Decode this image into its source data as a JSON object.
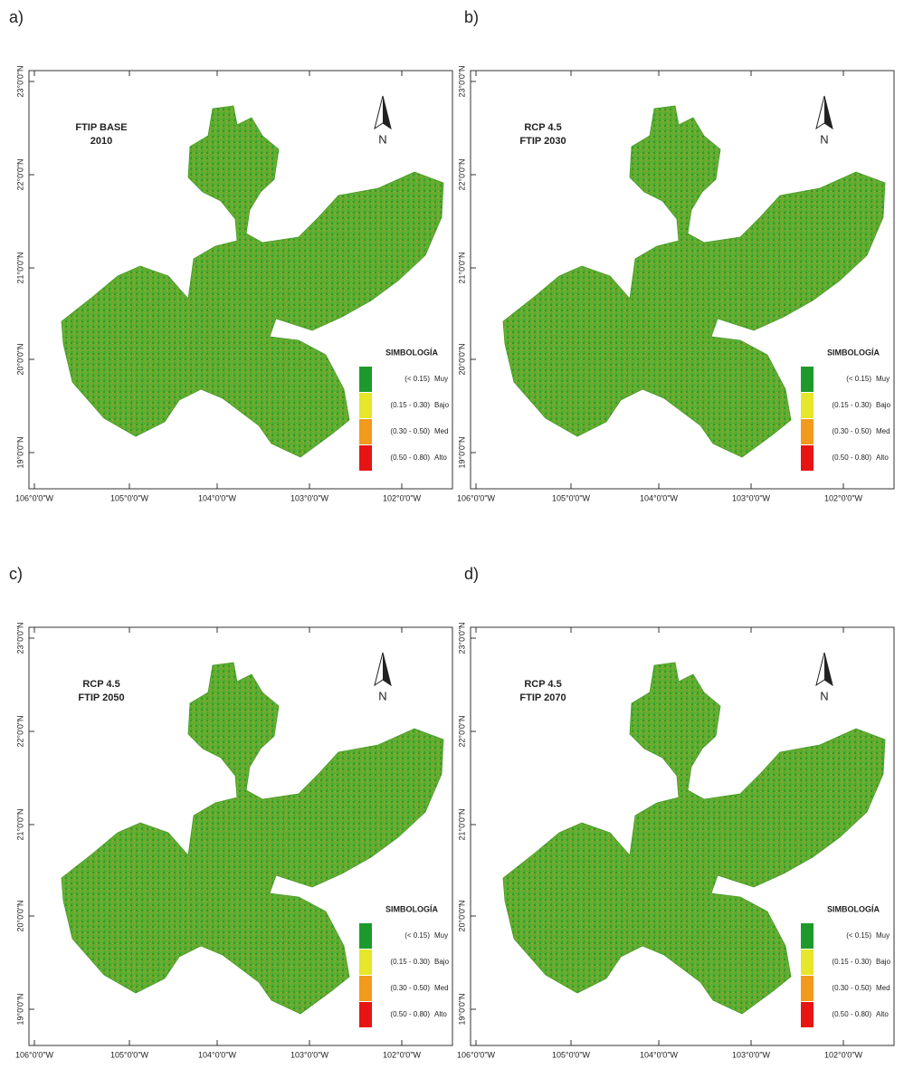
{
  "panels": [
    {
      "label": "a)",
      "title": [
        "FTIP BASE",
        "2010"
      ]
    },
    {
      "label": "b)",
      "title": [
        "RCP 4.5",
        "FTIP 2030"
      ]
    },
    {
      "label": "c)",
      "title": [
        "RCP 4.5",
        "FTIP 2050"
      ]
    },
    {
      "label": "d)",
      "title": [
        "RCP 4.5",
        "FTIP 2070"
      ]
    }
  ],
  "legend": {
    "title": "SIMBOLOGÍA",
    "items": [
      {
        "range": "(< 0.15)",
        "label": "Muy",
        "color": "#1e9a2c"
      },
      {
        "range": "(0.15 - 0.30)",
        "label": "Bajo",
        "color": "#e6e62a"
      },
      {
        "range": "(0.30 - 0.50)",
        "label": "Med",
        "color": "#f29a1e"
      },
      {
        "range": "(0.50 - 0.80)",
        "label": "Alto",
        "color": "#e81414"
      }
    ]
  },
  "x_ticks": [
    "106°0'0\"W",
    "105°0'0\"W",
    "104°0'0\"W",
    "103°0'0\"W",
    "102°0'0\"W"
  ],
  "y_ticks": [
    "23°0'0\"N",
    "22°0'0\"N",
    "21°0'0\"N",
    "20°0'0\"N",
    "19°0'0\"N"
  ],
  "north": "N"
}
